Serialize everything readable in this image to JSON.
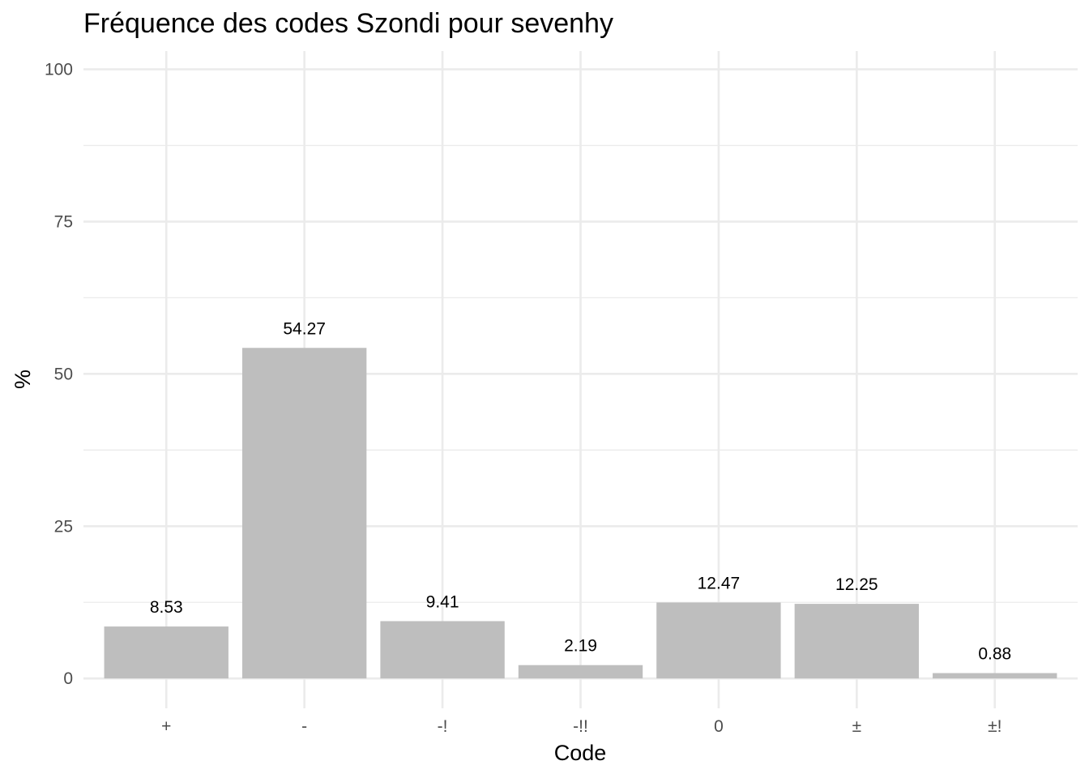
{
  "chart_data": {
    "type": "bar",
    "title": "Fréquence des codes Szondi pour sevenhy",
    "xlabel": "Code",
    "ylabel": "%",
    "categories": [
      "+",
      "-",
      "-!",
      "-!!",
      "0",
      "±",
      "±!"
    ],
    "values": [
      8.53,
      54.27,
      9.41,
      2.19,
      12.47,
      12.25,
      0.88
    ],
    "data_labels": [
      "8.53",
      "54.27",
      "9.41",
      "2.19",
      "12.47",
      "12.25",
      "0.88"
    ],
    "ylim": [
      -4.9,
      103
    ],
    "y_ticks": [
      0,
      25,
      50,
      75,
      100
    ],
    "y_tick_labels": [
      "0",
      "25",
      "50",
      "75",
      "100"
    ],
    "y_minor_ticks": [
      12.5,
      37.5,
      62.5,
      87.5
    ],
    "grid": true,
    "legend": "none",
    "bar_color": "#bebebe"
  }
}
